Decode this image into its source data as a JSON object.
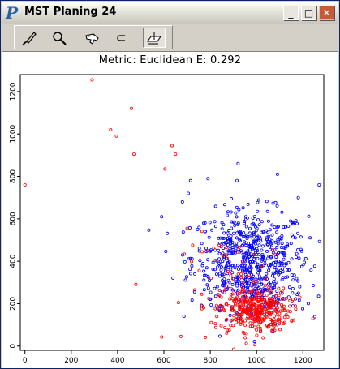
{
  "window": {
    "title": "MST Planing 24",
    "app_icon_glyph": "P",
    "controls": {
      "minimize": "_",
      "maximize": "□",
      "close": "✕"
    }
  },
  "toolbar": {
    "tools": [
      {
        "name": "brush-icon",
        "active": false
      },
      {
        "name": "magnifier-icon",
        "active": false
      },
      {
        "name": "hand-pointer-icon",
        "active": false
      },
      {
        "name": "subset-icon",
        "active": false
      },
      {
        "name": "plane-icon",
        "active": true
      }
    ]
  },
  "plot": {
    "title": "Metric: Euclidean    E: 0.292"
  },
  "chart_data": {
    "type": "scatter",
    "title": "Metric: Euclidean    E: 0.292",
    "xlim": [
      -20,
      1290
    ],
    "ylim": [
      -20,
      1280
    ],
    "x_ticks": [
      0,
      200,
      400,
      600,
      800,
      1000,
      1200
    ],
    "y_ticks": [
      0,
      200,
      400,
      600,
      800,
      1000,
      1200
    ],
    "grid": false,
    "series": [
      {
        "color": "#ff0000",
        "outliers": [
          [
            0,
            760
          ],
          [
            290,
            1255
          ],
          [
            370,
            1020
          ],
          [
            395,
            990
          ],
          [
            460,
            1120
          ],
          [
            470,
            905
          ],
          [
            605,
            835
          ],
          [
            635,
            945
          ],
          [
            650,
            905
          ],
          [
            700,
            555
          ]
        ],
        "clusters": [
          {
            "cx": 990,
            "cy": 170,
            "sx": 75,
            "sy": 50,
            "n": 360
          },
          {
            "cx": 930,
            "cy": 270,
            "sx": 120,
            "sy": 130,
            "n": 70
          }
        ]
      },
      {
        "color": "#0000ff",
        "outliers": [
          [
            680,
            680
          ],
          [
            705,
            720
          ],
          [
            715,
            780
          ],
          [
            790,
            790
          ],
          [
            920,
            860
          ],
          [
            1090,
            810
          ],
          [
            1270,
            760
          ],
          [
            1180,
            700
          ],
          [
            590,
            610
          ]
        ],
        "clusters": [
          {
            "cx": 970,
            "cy": 420,
            "sx": 125,
            "sy": 110,
            "n": 560
          },
          {
            "cx": 1010,
            "cy": 250,
            "sx": 100,
            "sy": 80,
            "n": 110
          }
        ]
      }
    ]
  }
}
